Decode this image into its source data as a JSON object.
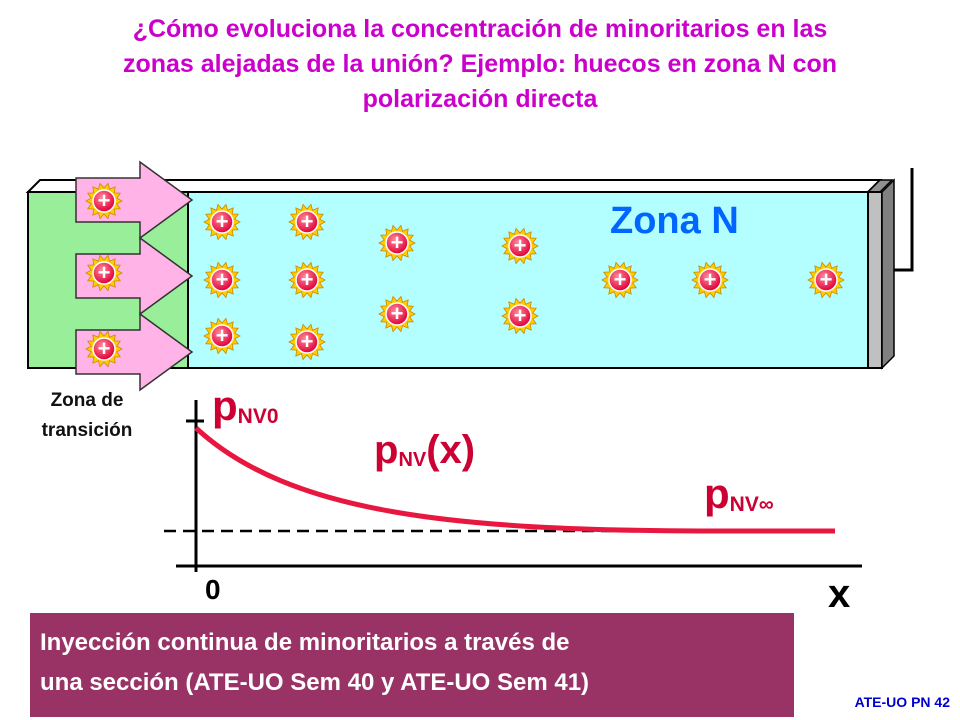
{
  "title": {
    "line1": "¿Cómo evoluciona la concentración de minoritarios en las",
    "line2": "zonas alejadas de la unión? Ejemplo: huecos en zona N con",
    "line3": "polarización directa"
  },
  "diagram": {
    "zone_n_label": "Zona N",
    "transition_label_line1": "Zona de",
    "transition_label_line2": "transición",
    "hole_symbol": "+",
    "hole_icon": "hole-plus-icon",
    "colors": {
      "n_zone": "#b3ffff",
      "transition_zone": "#99ee99",
      "contact": "#c0c0c0",
      "arrow": "#ffb3e6",
      "hole": "#ff3366",
      "hole_halo": "#ffcc00",
      "curve": "#e8173f"
    }
  },
  "graph": {
    "p0_label": "p",
    "p0_sub": "NV0",
    "px_label": "p",
    "px_sub": "NV",
    "px_suffix": "(x)",
    "pinf_label": "p",
    "pinf_sub": "NV∞",
    "origin_label": "0",
    "x_axis_label": "x"
  },
  "info": {
    "line1": "Inyección continua de minoritarios a través de",
    "line2": "una sección (ATE-UO Sem 40 y ATE-UO Sem 41)"
  },
  "footer": "ATE-UO PN 42"
}
